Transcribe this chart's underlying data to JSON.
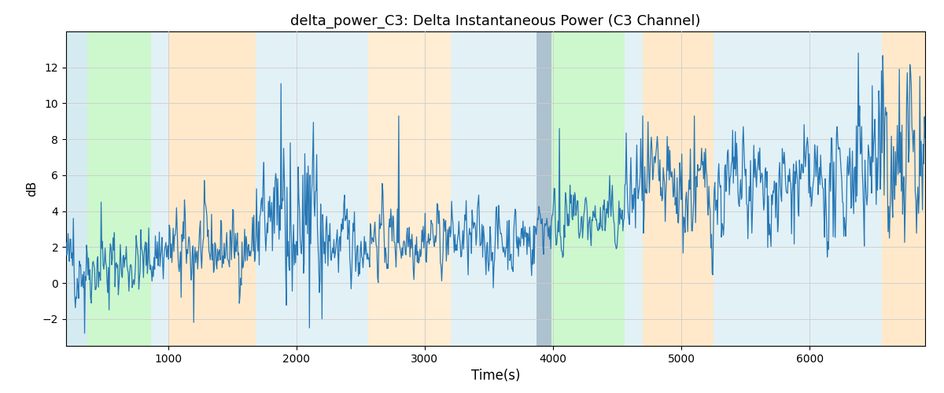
{
  "title": "delta_power_C3: Delta Instantaneous Power (C3 Channel)",
  "xlabel": "Time(s)",
  "ylabel": "dB",
  "xlim": [
    205,
    6900
  ],
  "ylim": [
    -3.5,
    14.0
  ],
  "yticks": [
    -2,
    0,
    2,
    4,
    6,
    8,
    10,
    12
  ],
  "xticks": [
    1000,
    2000,
    3000,
    4000,
    5000,
    6000
  ],
  "line_color": "#2777b4",
  "line_width": 0.9,
  "grid_color": "#cccccc",
  "colored_bands": [
    {
      "xmin": 205,
      "xmax": 370,
      "color": "#add8e6",
      "alpha": 0.5
    },
    {
      "xmin": 370,
      "xmax": 870,
      "color": "#90ee90",
      "alpha": 0.45
    },
    {
      "xmin": 870,
      "xmax": 1000,
      "color": "#add8e6",
      "alpha": 0.35
    },
    {
      "xmin": 1000,
      "xmax": 1680,
      "color": "#ffd8a0",
      "alpha": 0.55
    },
    {
      "xmin": 1680,
      "xmax": 1820,
      "color": "#add8e6",
      "alpha": 0.35
    },
    {
      "xmin": 1820,
      "xmax": 2560,
      "color": "#add8e6",
      "alpha": 0.35
    },
    {
      "xmin": 2560,
      "xmax": 2750,
      "color": "#ffd8a0",
      "alpha": 0.45
    },
    {
      "xmin": 2750,
      "xmax": 3200,
      "color": "#ffd8a0",
      "alpha": 0.45
    },
    {
      "xmin": 3200,
      "xmax": 3870,
      "color": "#add8e6",
      "alpha": 0.35
    },
    {
      "xmin": 3870,
      "xmax": 3990,
      "color": "#6a8fa8",
      "alpha": 0.55
    },
    {
      "xmin": 3990,
      "xmax": 4560,
      "color": "#90ee90",
      "alpha": 0.45
    },
    {
      "xmin": 4560,
      "xmax": 4700,
      "color": "#add8e6",
      "alpha": 0.35
    },
    {
      "xmin": 4700,
      "xmax": 5250,
      "color": "#ffd8a0",
      "alpha": 0.55
    },
    {
      "xmin": 5250,
      "xmax": 6150,
      "color": "#add8e6",
      "alpha": 0.35
    },
    {
      "xmin": 6150,
      "xmax": 6480,
      "color": "#add8e6",
      "alpha": 0.35
    },
    {
      "xmin": 6480,
      "xmax": 6560,
      "color": "#add8e6",
      "alpha": 0.35
    },
    {
      "xmin": 6560,
      "xmax": 6900,
      "color": "#ffd8a0",
      "alpha": 0.55
    }
  ],
  "seed": 42,
  "n_points": 1300
}
